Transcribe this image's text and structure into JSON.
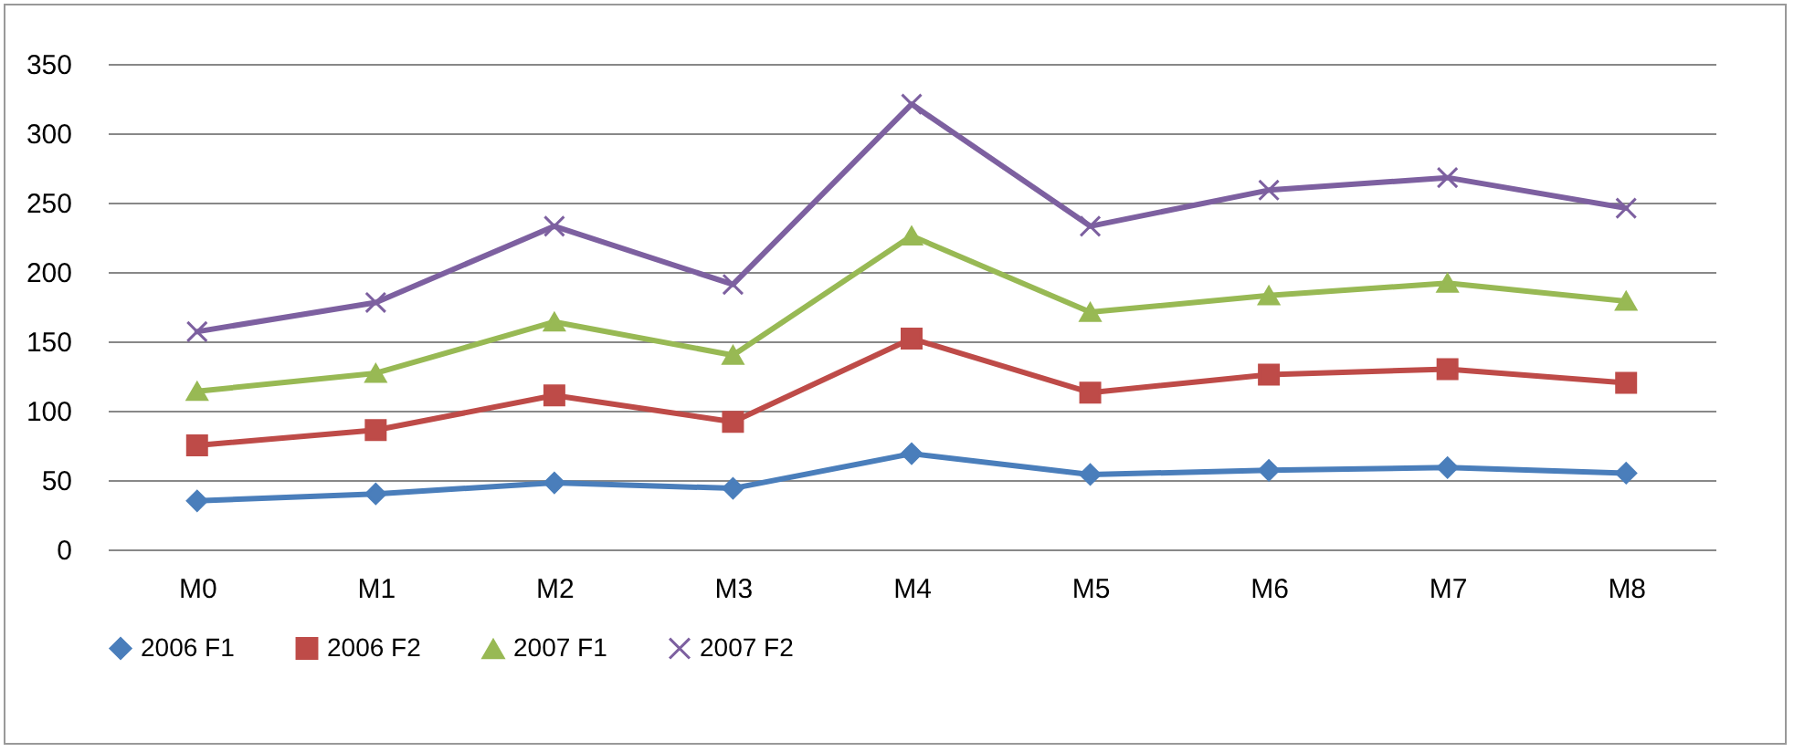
{
  "chart_data": {
    "type": "line",
    "categories": [
      "M0",
      "M1",
      "M2",
      "M3",
      "M4",
      "M5",
      "M6",
      "M7",
      "M8"
    ],
    "ylim": [
      0,
      350
    ],
    "yticks": [
      0,
      50,
      100,
      150,
      200,
      250,
      300,
      350
    ],
    "grid": "y",
    "legend": "bottom",
    "series": [
      {
        "name": "2006 F1",
        "color": "#4a7ebb",
        "marker": "diamond",
        "values": [
          35,
          40,
          48,
          44,
          69,
          54,
          57,
          59,
          55
        ]
      },
      {
        "name": "2006 F2",
        "color": "#be4b48",
        "marker": "square",
        "values": [
          75,
          86,
          111,
          92,
          152,
          113,
          126,
          130,
          120
        ]
      },
      {
        "name": "2007 F1",
        "color": "#98b954",
        "marker": "triangle",
        "values": [
          114,
          127,
          164,
          140,
          226,
          171,
          183,
          192,
          179
        ]
      },
      {
        "name": "2007 F2",
        "color": "#7d60a0",
        "marker": "cross",
        "values": [
          157,
          178,
          233,
          191,
          321,
          233,
          259,
          268,
          246
        ]
      }
    ]
  }
}
